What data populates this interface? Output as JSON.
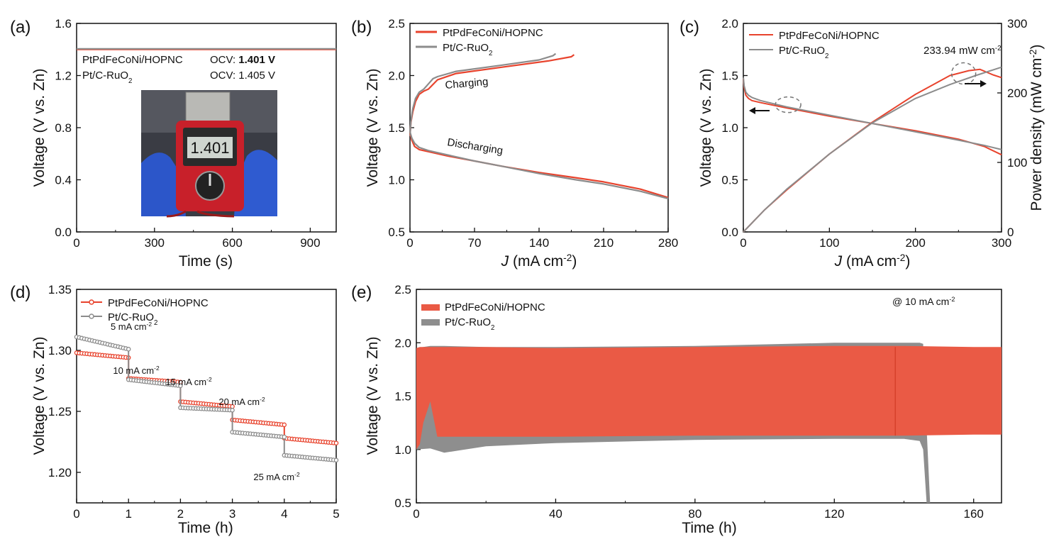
{
  "colors": {
    "red": "#e8432d",
    "gray": "#8c8c8c",
    "red_fill": "#ea5a45",
    "gray_fill": "#8e8e8e",
    "axis": "#111111"
  },
  "chart_data": [
    {
      "panel": "(a)",
      "type": "line",
      "xlabel": "Time (s)",
      "ylabel": "Voltage (V vs. Zn)",
      "xlim": [
        0,
        1000
      ],
      "ylim": [
        0.0,
        1.6
      ],
      "xticks": [
        0,
        300,
        600,
        900
      ],
      "yticks": [
        0.0,
        0.4,
        0.8,
        1.2,
        1.6
      ],
      "xticklabels": [
        "0",
        "300",
        "600",
        "900"
      ],
      "yticklabels": [
        "0.0",
        "0.4",
        "0.8",
        "1.2",
        "1.6"
      ],
      "series": [
        {
          "name": "PtPdFeCoNi/HOPNC",
          "color": "red",
          "x": [
            0,
            1000
          ],
          "y": [
            1.401,
            1.401
          ]
        },
        {
          "name": "Pt/C-RuO2",
          "color": "gray",
          "x": [
            0,
            1000
          ],
          "y": [
            1.405,
            1.405
          ]
        }
      ],
      "legend": [
        {
          "name": "PtPdFeCoNi/HOPNC",
          "ocv_label": "OCV:",
          "ocv_value": "1.401 V",
          "color": "red"
        },
        {
          "name": "Pt/C-RuO",
          "sub": "2",
          "ocv_label": "OCV:",
          "ocv_value": "1.405 V",
          "color": "axis"
        }
      ],
      "inset": {
        "description": "photo of multimeter",
        "display_text": "1.401"
      }
    },
    {
      "panel": "(b)",
      "type": "line",
      "xlabel_italic": "J",
      "xlabel_rest": " (mA cm",
      "xlabel_sup": "-2",
      "xlabel_end": ")",
      "ylabel": "Voltage (V vs. Zn)",
      "xlim": [
        0,
        280
      ],
      "ylim": [
        0.5,
        2.5
      ],
      "xticks": [
        0,
        70,
        140,
        210,
        280
      ],
      "yticks": [
        0.5,
        1.0,
        1.5,
        2.0,
        2.5
      ],
      "xticklabels": [
        "0",
        "70",
        "140",
        "210",
        "280"
      ],
      "yticklabels": [
        "0.5",
        "1.0",
        "1.5",
        "2.0",
        "2.5"
      ],
      "annotations": [
        "Charging",
        "Discharging"
      ],
      "legend": [
        {
          "name": "PtPdFeCoNi/HOPNC",
          "color": "red"
        },
        {
          "name": "Pt/C-RuO",
          "sub": "2",
          "color": "gray"
        }
      ],
      "series": [
        {
          "name": "PtPdFeCoNi/HOPNC charging",
          "color": "red",
          "x": [
            0,
            1,
            3,
            6,
            10,
            15,
            20,
            30,
            50,
            100,
            150,
            175,
            178
          ],
          "y": [
            1.42,
            1.55,
            1.65,
            1.75,
            1.82,
            1.85,
            1.87,
            1.96,
            2.02,
            2.08,
            2.14,
            2.18,
            2.2
          ]
        },
        {
          "name": "Pt/C-RuO2 charging",
          "color": "gray",
          "x": [
            0,
            1,
            3,
            6,
            10,
            15,
            20,
            25,
            30,
            50,
            100,
            140,
            155,
            158
          ],
          "y": [
            1.42,
            1.56,
            1.68,
            1.78,
            1.84,
            1.87,
            1.92,
            1.97,
            1.99,
            2.04,
            2.1,
            2.15,
            2.19,
            2.21
          ]
        },
        {
          "name": "PtPdFeCoNi/HOPNC discharging",
          "color": "red",
          "x": [
            0,
            2,
            5,
            10,
            20,
            40,
            70,
            100,
            140,
            180,
            210,
            250,
            280
          ],
          "y": [
            1.45,
            1.38,
            1.32,
            1.29,
            1.27,
            1.23,
            1.18,
            1.13,
            1.07,
            1.02,
            0.98,
            0.91,
            0.83
          ]
        },
        {
          "name": "Pt/C-RuO2 discharging",
          "color": "gray",
          "x": [
            0,
            2,
            5,
            10,
            20,
            40,
            70,
            100,
            140,
            180,
            210,
            250,
            280
          ],
          "y": [
            1.46,
            1.4,
            1.35,
            1.31,
            1.28,
            1.24,
            1.18,
            1.13,
            1.06,
            1.0,
            0.96,
            0.89,
            0.82
          ]
        }
      ]
    },
    {
      "panel": "(c)",
      "type": "line",
      "xlabel_italic": "J",
      "xlabel_rest": " (mA cm",
      "xlabel_sup": "-2",
      "xlabel_end": ")",
      "ylabel": "Voltage (V vs. Zn)",
      "y2label": "Power density (mW cm",
      "y2label_sup": "-2",
      "y2label_end": ")",
      "xlim": [
        0,
        300
      ],
      "ylim": [
        0.0,
        2.0
      ],
      "y2lim": [
        0,
        300
      ],
      "xticks": [
        0,
        100,
        200,
        300
      ],
      "yticks": [
        0.0,
        0.5,
        1.0,
        1.5,
        2.0
      ],
      "y2ticks": [
        0,
        100,
        200,
        300
      ],
      "xticklabels": [
        "0",
        "100",
        "200",
        "300"
      ],
      "yticklabels": [
        "0.0",
        "0.5",
        "1.0",
        "1.5",
        "2.0"
      ],
      "y2ticklabels": [
        "0",
        "100",
        "200",
        "300"
      ],
      "annotation": "233.94 mW cm",
      "annotation_sup": "-2",
      "legend": [
        {
          "name": "PtPdFeCoNi/HOPNC",
          "color": "red"
        },
        {
          "name": "Pt/C-RuO",
          "sub": "2",
          "color": "gray"
        }
      ],
      "series": [
        {
          "name": "PtPdFeCoNi/HOPNC voltage",
          "axis": "left",
          "color": "red",
          "x": [
            0,
            1,
            3,
            6,
            10,
            20,
            50,
            100,
            150,
            200,
            250,
            280,
            300
          ],
          "y": [
            1.47,
            1.38,
            1.31,
            1.28,
            1.26,
            1.24,
            1.19,
            1.11,
            1.04,
            0.97,
            0.89,
            0.82,
            0.74
          ]
        },
        {
          "name": "Pt/C-RuO2 voltage",
          "axis": "left",
          "color": "gray",
          "x": [
            0,
            1,
            3,
            6,
            10,
            20,
            50,
            100,
            150,
            200,
            250,
            280,
            300
          ],
          "y": [
            1.48,
            1.4,
            1.34,
            1.31,
            1.29,
            1.26,
            1.2,
            1.12,
            1.04,
            0.96,
            0.88,
            0.83,
            0.79
          ]
        },
        {
          "name": "PtPdFeCoNi/HOPNC power",
          "axis": "right",
          "color": "red",
          "x": [
            0,
            25,
            50,
            100,
            150,
            200,
            240,
            262,
            275,
            290,
            300
          ],
          "y": [
            0,
            32,
            60,
            112,
            158,
            198,
            225,
            232,
            233.9,
            226,
            222
          ]
        },
        {
          "name": "Pt/C-RuO2 power",
          "axis": "right",
          "color": "gray",
          "x": [
            0,
            25,
            50,
            100,
            150,
            200,
            240,
            270,
            300
          ],
          "y": [
            0,
            32,
            61,
            112,
            157,
            192,
            212,
            225,
            237
          ]
        }
      ]
    },
    {
      "panel": "(d)",
      "type": "line",
      "xlabel": "Time (h)",
      "ylabel": "Voltage (V vs. Zn)",
      "xlim": [
        0,
        5
      ],
      "ylim": [
        1.175,
        1.35
      ],
      "xticks": [
        0,
        1,
        2,
        3,
        4,
        5
      ],
      "yticks": [
        1.2,
        1.25,
        1.3,
        1.35
      ],
      "xticklabels": [
        "0",
        "1",
        "2",
        "3",
        "4",
        "5"
      ],
      "yticklabels": [
        "1.20",
        "1.25",
        "1.30",
        "1.35"
      ],
      "legend": [
        {
          "name": "PtPdFeCoNi/HOPNC",
          "color": "red"
        },
        {
          "name": "Pt/C-RuO",
          "sub": "2",
          "color": "gray"
        }
      ],
      "step_labels": [
        {
          "text": "5 mA cm",
          "sup": "-2"
        },
        {
          "text": "10 mA cm",
          "sup": "-2"
        },
        {
          "text": "15 mA cm",
          "sup": "-2"
        },
        {
          "text": "20 mA cm",
          "sup": "-2"
        },
        {
          "text": "25 mA cm",
          "sup": "-2"
        }
      ],
      "series": [
        {
          "name": "PtPdFeCoNi/HOPNC",
          "color": "red",
          "segments": [
            [
              1.298,
              1.294
            ],
            [
              1.277,
              1.274
            ],
            [
              1.258,
              1.254
            ],
            [
              1.243,
              1.239
            ],
            [
              1.228,
              1.224
            ]
          ]
        },
        {
          "name": "Pt/C-RuO2",
          "color": "gray",
          "segments": [
            [
              1.311,
              1.301
            ],
            [
              1.276,
              1.271
            ],
            [
              1.253,
              1.251
            ],
            [
              1.233,
              1.229
            ],
            [
              1.214,
              1.21
            ]
          ]
        }
      ]
    },
    {
      "panel": "(e)",
      "type": "area",
      "xlabel": "Time (h)",
      "ylabel": "Voltage (V vs. Zn)",
      "xlim": [
        0,
        168
      ],
      "ylim": [
        0.5,
        2.5
      ],
      "xticks": [
        0,
        40,
        80,
        120,
        160
      ],
      "yticks": [
        0.5,
        1.0,
        1.5,
        2.0,
        2.5
      ],
      "xticklabels": [
        "0",
        "40",
        "80",
        "120",
        "160"
      ],
      "yticklabels": [
        "0.5",
        "1.0",
        "1.5",
        "2.0",
        "2.5"
      ],
      "annotation": "@ 10 mA cm",
      "annotation_sup": "-2",
      "legend": [
        {
          "name": "PtPdFeCoNi/HOPNC",
          "color": "red"
        },
        {
          "name": "Pt/C-RuO",
          "sub": "2",
          "color": "gray"
        }
      ],
      "series": [
        {
          "name": "Pt/C-RuO2",
          "color": "gray",
          "x": [
            0,
            4,
            8,
            20,
            40,
            80,
            120,
            140,
            144.5,
            145.5,
            146.5,
            147.5
          ],
          "upper": [
            1.95,
            1.97,
            1.97,
            1.96,
            1.96,
            1.97,
            2.0,
            2.0,
            2.0,
            1.99,
            1.2,
            0.5
          ],
          "lower": [
            1.0,
            1.01,
            0.97,
            1.03,
            1.06,
            1.09,
            1.1,
            1.1,
            1.08,
            1.0,
            0.5,
            0.5
          ]
        },
        {
          "name": "PtPdFeCoNi/HOPNC",
          "color": "red",
          "x": [
            0,
            1,
            2,
            4,
            6,
            20,
            40,
            80,
            120,
            140,
            160,
            168
          ],
          "upper": [
            1.95,
            1.96,
            1.96,
            1.96,
            1.96,
            1.96,
            1.95,
            1.96,
            1.97,
            1.97,
            1.96,
            1.96
          ],
          "lower": [
            1.0,
            1.05,
            1.25,
            1.45,
            1.12,
            1.12,
            1.12,
            1.13,
            1.13,
            1.13,
            1.14,
            1.14
          ]
        }
      ]
    }
  ]
}
